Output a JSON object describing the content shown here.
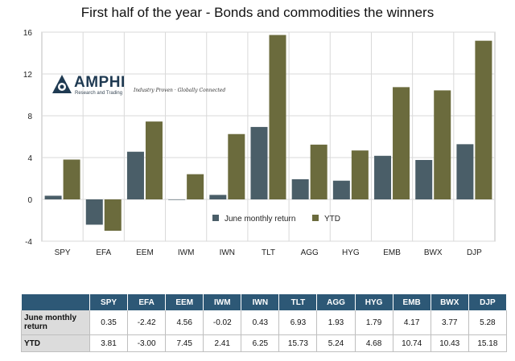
{
  "chart_data": {
    "type": "bar",
    "title": "First half of the year - Bonds and commodities the winners",
    "categories": [
      "SPY",
      "EFA",
      "EEM",
      "IWM",
      "IWN",
      "TLT",
      "AGG",
      "HYG",
      "EMB",
      "BWX",
      "DJP"
    ],
    "series": [
      {
        "name": "June monthly return",
        "color": "#4a5e68",
        "values": [
          0.35,
          -2.42,
          4.56,
          -0.02,
          0.43,
          6.93,
          1.93,
          1.79,
          4.17,
          3.77,
          5.28
        ]
      },
      {
        "name": "YTD",
        "color": "#6b6b3d",
        "values": [
          3.81,
          -3.0,
          7.45,
          2.41,
          6.25,
          15.73,
          5.24,
          4.68,
          10.74,
          10.43,
          15.18
        ]
      }
    ],
    "ylim": [
      -4,
      16
    ],
    "yticks": [
      -4,
      0,
      4,
      8,
      12,
      16
    ],
    "xlabel": "",
    "ylabel": "",
    "grid": true,
    "legend_position": "bottom-center"
  },
  "logo": {
    "name": "AMPHI",
    "subtitle": "Research and Trading",
    "tagline": "Industry Proven · Globally Connected"
  },
  "table": {
    "headers": [
      "",
      "SPY",
      "EFA",
      "EEM",
      "IWM",
      "IWN",
      "TLT",
      "AGG",
      "HYG",
      "EMB",
      "BWX",
      "DJP"
    ],
    "rows": [
      {
        "label": "June monthly return",
        "values": [
          "0.35",
          "-2.42",
          "4.56",
          "-0.02",
          "0.43",
          "6.93",
          "1.93",
          "1.79",
          "4.17",
          "3.77",
          "5.28"
        ]
      },
      {
        "label": "YTD",
        "values": [
          "3.81",
          "-3.00",
          "7.45",
          "2.41",
          "6.25",
          "15.73",
          "5.24",
          "4.68",
          "10.74",
          "10.43",
          "15.18"
        ]
      }
    ]
  }
}
